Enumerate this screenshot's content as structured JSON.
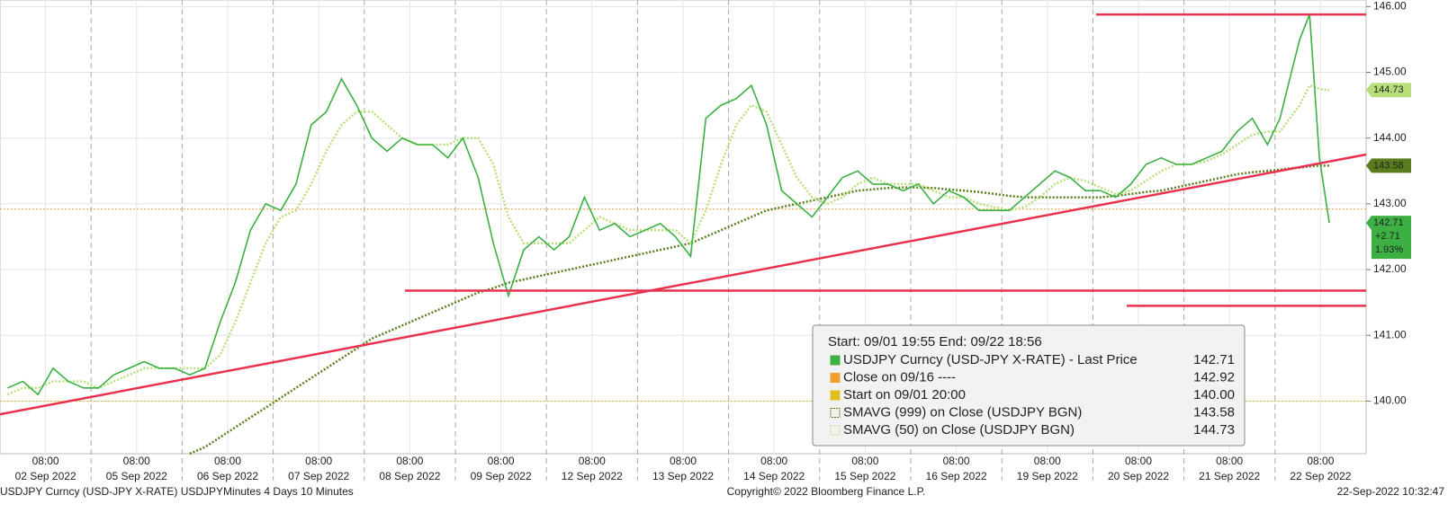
{
  "chart_data": {
    "type": "line",
    "ylim": [
      139.2,
      146.1
    ],
    "yticks": [
      {
        "value": 140,
        "label": "140.00"
      },
      {
        "value": 141,
        "label": "141.00"
      },
      {
        "value": 142,
        "label": "142.00"
      },
      {
        "value": 143,
        "label": "143.00"
      },
      {
        "value": 144,
        "label": "144.00"
      },
      {
        "value": 145,
        "label": "145.00"
      },
      {
        "value": 146,
        "label": "146.00"
      }
    ],
    "grid": true,
    "colors": {
      "last": "#3cb043",
      "sma50": "#b8e07a",
      "sma999": "#5a7d1e"
    },
    "days": [
      {
        "date": "02 Sep 2022",
        "tick": "08:00",
        "last": [
          140.2,
          140.3,
          140.1,
          140.5,
          140.3,
          140.2
        ],
        "sma50": [
          140.1,
          140.2,
          140.2,
          140.3,
          140.3,
          140.3
        ],
        "sma999": [
          null,
          null,
          null,
          null,
          null,
          null
        ]
      },
      {
        "date": "05 Sep 2022",
        "tick": "08:00",
        "last": [
          140.2,
          140.4,
          140.5,
          140.6,
          140.5,
          140.5
        ],
        "sma50": [
          140.2,
          140.3,
          140.4,
          140.5,
          140.5,
          140.5
        ],
        "sma999": [
          null,
          null,
          null,
          null,
          null,
          null
        ]
      },
      {
        "date": "06 Sep 2022",
        "tick": "08:00",
        "last": [
          140.4,
          140.5,
          141.2,
          141.8,
          142.6,
          143.0
        ],
        "sma50": [
          140.5,
          140.5,
          140.7,
          141.2,
          141.8,
          142.4
        ],
        "sma999": [
          139.2,
          139.3,
          139.45,
          139.6,
          139.75,
          139.9
        ]
      },
      {
        "date": "07 Sep 2022",
        "tick": "08:00",
        "last": [
          142.9,
          143.3,
          144.2,
          144.4,
          144.9,
          144.5
        ],
        "sma50": [
          142.8,
          142.9,
          143.3,
          143.8,
          144.2,
          144.4
        ],
        "sma999": [
          140.05,
          140.2,
          140.35,
          140.5,
          140.65,
          140.8
        ]
      },
      {
        "date": "08 Sep 2022",
        "tick": "08:00",
        "last": [
          144.0,
          143.8,
          144.0,
          143.9,
          143.9,
          143.7
        ],
        "sma50": [
          144.4,
          144.2,
          144.0,
          143.9,
          143.9,
          143.9
        ],
        "sma999": [
          140.95,
          141.05,
          141.15,
          141.25,
          141.35,
          141.45
        ]
      },
      {
        "date": "09 Sep 2022",
        "tick": "08:00",
        "last": [
          144.0,
          143.4,
          142.4,
          141.6,
          142.3,
          142.5
        ],
        "sma50": [
          144.0,
          144.0,
          143.6,
          142.8,
          142.4,
          142.4
        ],
        "sma999": [
          141.55,
          141.65,
          141.72,
          141.8,
          141.85,
          141.9
        ]
      },
      {
        "date": "12 Sep 2022",
        "tick": "08:00",
        "last": [
          142.3,
          142.5,
          143.1,
          142.6,
          142.7,
          142.5
        ],
        "sma50": [
          142.4,
          142.4,
          142.6,
          142.8,
          142.7,
          142.6
        ],
        "sma999": [
          141.95,
          142.0,
          142.05,
          142.1,
          142.15,
          142.2
        ]
      },
      {
        "date": "13 Sep 2022",
        "tick": "08:00",
        "last": [
          142.6,
          142.7,
          142.5,
          142.2,
          144.3,
          144.5
        ],
        "sma50": [
          142.6,
          142.6,
          142.6,
          142.4,
          142.9,
          143.6
        ],
        "sma999": [
          142.25,
          142.3,
          142.35,
          142.4,
          142.5,
          142.6
        ]
      },
      {
        "date": "14 Sep 2022",
        "tick": "08:00",
        "last": [
          144.6,
          144.8,
          144.2,
          143.2,
          143.0,
          142.8
        ],
        "sma50": [
          144.2,
          144.5,
          144.4,
          143.9,
          143.4,
          143.1
        ],
        "sma999": [
          142.7,
          142.8,
          142.9,
          142.95,
          143.0,
          143.05
        ]
      },
      {
        "date": "15 Sep 2022",
        "tick": "08:00",
        "last": [
          143.1,
          143.4,
          143.5,
          143.3,
          143.3,
          143.2
        ],
        "sma50": [
          143.0,
          143.1,
          143.3,
          143.4,
          143.3,
          143.3
        ],
        "sma999": [
          143.1,
          143.15,
          143.2,
          143.22,
          143.24,
          143.25
        ]
      },
      {
        "date": "16 Sep 2022",
        "tick": "08:00",
        "last": [
          143.3,
          143.0,
          143.2,
          143.1,
          142.9,
          142.9
        ],
        "sma50": [
          143.3,
          143.2,
          143.1,
          143.1,
          143.0,
          142.95
        ],
        "sma999": [
          143.25,
          143.24,
          143.22,
          143.2,
          143.18,
          143.15
        ]
      },
      {
        "date": "19 Sep 2022",
        "tick": "08:00",
        "last": [
          142.9,
          143.1,
          143.3,
          143.5,
          143.4,
          143.2
        ],
        "sma50": [
          142.9,
          142.95,
          143.1,
          143.3,
          143.4,
          143.35
        ],
        "sma999": [
          143.12,
          143.1,
          143.1,
          143.1,
          143.1,
          143.1
        ]
      },
      {
        "date": "20 Sep 2022",
        "tick": "08:00",
        "last": [
          143.2,
          143.1,
          143.3,
          143.6,
          143.7,
          143.6
        ],
        "sma50": [
          143.25,
          143.15,
          143.2,
          143.35,
          143.5,
          143.6
        ],
        "sma999": [
          143.1,
          143.12,
          143.15,
          143.18,
          143.2,
          143.25
        ]
      },
      {
        "date": "21 Sep 2022",
        "tick": "08:00",
        "last": [
          143.6,
          143.7,
          143.8,
          144.1,
          144.3,
          143.9
        ],
        "sma50": [
          143.6,
          143.65,
          143.75,
          143.9,
          144.05,
          144.1
        ],
        "sma999": [
          143.3,
          143.35,
          143.4,
          143.45,
          143.48,
          143.5
        ]
      },
      {
        "date": "22 Sep 2022",
        "tick": "08:00",
        "last": [
          144.3,
          144.9,
          145.5,
          145.88,
          143.7,
          142.71
        ],
        "sma50": [
          144.1,
          144.3,
          144.5,
          144.8,
          144.75,
          144.73
        ],
        "sma999": [
          143.52,
          143.54,
          143.55,
          143.57,
          143.58,
          143.58
        ]
      }
    ],
    "levels": [
      {
        "value": 145.88,
        "color": "#e8304f"
      },
      {
        "value": 141.68,
        "color": "#e8304f"
      },
      {
        "value": 141.45,
        "color": "#e8304f"
      }
    ],
    "trendline": {
      "start": 139.8,
      "end": 143.75,
      "color": "#e8304f"
    },
    "ref_lines": [
      {
        "value": 142.92,
        "color": "#f0a030"
      },
      {
        "value": 140,
        "color": "#e0c020"
      }
    ],
    "tags": [
      {
        "value": 144.73,
        "color": "#b8e07a"
      },
      {
        "value": 143.58,
        "color": "#5a7d1e"
      }
    ],
    "last_tag": {
      "value": 142.71,
      "change": {
        "value": 2.71,
        "label": "+2.71"
      },
      "pct": {
        "value": 1.93,
        "label": "1.93%"
      },
      "color": "#3cb043"
    },
    "legend": {
      "header": "Start: 09/01 19:55 End: 09/22 18:56",
      "rows": [
        {
          "name": "USDJPY Curncy (USD-JPY X-RATE) - Last Price",
          "value": 142.71,
          "color": "#3cb043"
        },
        {
          "name": "Close on 09/16 ----",
          "value": 142.92,
          "color": "#f0a030"
        },
        {
          "name": "Start on 09/01 20:00",
          "value": {
            "value": 140,
            "label": "140.00"
          },
          "color": "#e0c020"
        },
        {
          "name": "SMAVG (999)  on Close (USDJPY BGN)",
          "value": 143.58,
          "color": "#5a7d1e"
        },
        {
          "name": "SMAVG (50)  on Close (USDJPY BGN)",
          "value": 144.73,
          "color": "#b8e07a"
        }
      ]
    },
    "footer": {
      "left": "USDJPY Curncy (USD-JPY X-RATE) USDJPYMinutes 4 Days 10 Minutes",
      "center": "Copyright© 2022 Bloomberg Finance L.P.",
      "right": "22-Sep-2022 10:32:47"
    }
  }
}
